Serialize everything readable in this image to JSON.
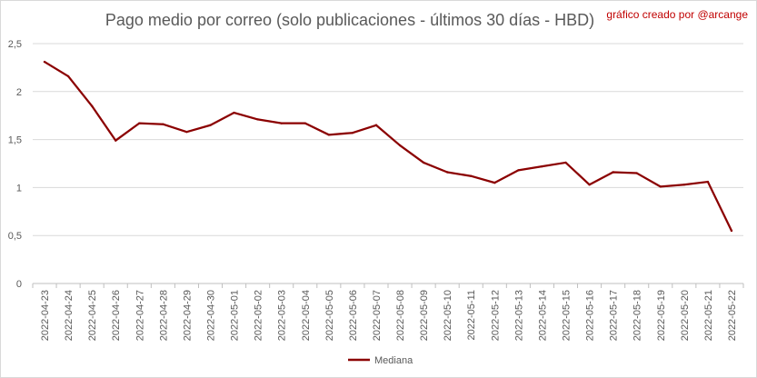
{
  "chart_data": {
    "type": "line",
    "title": "Pago medio por correo (solo publicaciones - últimos 30 días - HBD)",
    "annotation": "gráfico creado por @arcange",
    "xlabel": "",
    "ylabel": "",
    "ylim": [
      0,
      2.5
    ],
    "yticks": [
      "0",
      "0,5",
      "1",
      "1,5",
      "2",
      "2,5"
    ],
    "grid": true,
    "legend_position": "bottom",
    "line_color": "#8b0000",
    "x": [
      "2022-04-23",
      "2022-04-24",
      "2022-04-25",
      "2022-04-26",
      "2022-04-27",
      "2022-04-28",
      "2022-04-29",
      "2022-04-30",
      "2022-05-01",
      "2022-05-02",
      "2022-05-03",
      "2022-05-04",
      "2022-05-05",
      "2022-05-06",
      "2022-05-07",
      "2022-05-08",
      "2022-05-09",
      "2022-05-10",
      "2022-05-11",
      "2022-05-12",
      "2022-05-13",
      "2022-05-14",
      "2022-05-15",
      "2022-05-16",
      "2022-05-17",
      "2022-05-18",
      "2022-05-19",
      "2022-05-20",
      "2022-05-21",
      "2022-05-22"
    ],
    "series": [
      {
        "name": "Mediana",
        "values": [
          2.31,
          2.16,
          1.85,
          1.49,
          1.67,
          1.66,
          1.58,
          1.65,
          1.78,
          1.71,
          1.67,
          1.67,
          1.55,
          1.57,
          1.65,
          1.44,
          1.26,
          1.16,
          1.12,
          1.05,
          1.18,
          1.22,
          1.26,
          1.03,
          1.16,
          1.15,
          1.01,
          1.03,
          1.06,
          0.55
        ]
      }
    ]
  }
}
